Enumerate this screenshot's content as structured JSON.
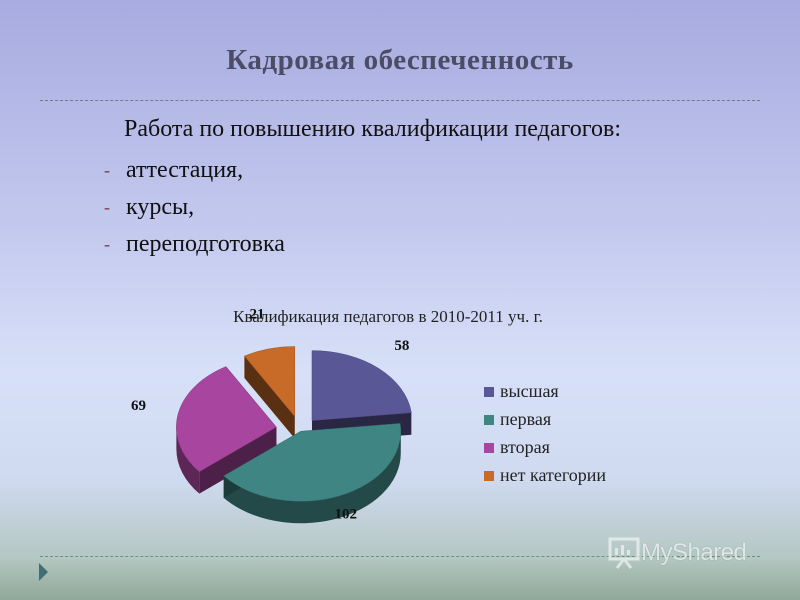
{
  "slide": {
    "title": "Кадровая обеспеченность",
    "intro": "Работа по повышению квалификации педагогов:",
    "bullets": [
      {
        "dash": "-",
        "text": "аттестация,"
      },
      {
        "dash": "-",
        "text": "курсы,"
      },
      {
        "dash": "-",
        "text": "переподготовка"
      }
    ],
    "logo_text": "MyShared"
  },
  "chart_data": {
    "type": "pie",
    "title": "Квалификация педагогов в 2010-2011 уч. г.",
    "categories": [
      "высшая",
      "первая",
      "вторая",
      "нет категории"
    ],
    "values": [
      58,
      102,
      69,
      21
    ],
    "colors": [
      "#5a5796",
      "#3f8584",
      "#a8469f",
      "#c86a28"
    ],
    "legend_position": "right",
    "three_d": true,
    "exploded": true
  }
}
